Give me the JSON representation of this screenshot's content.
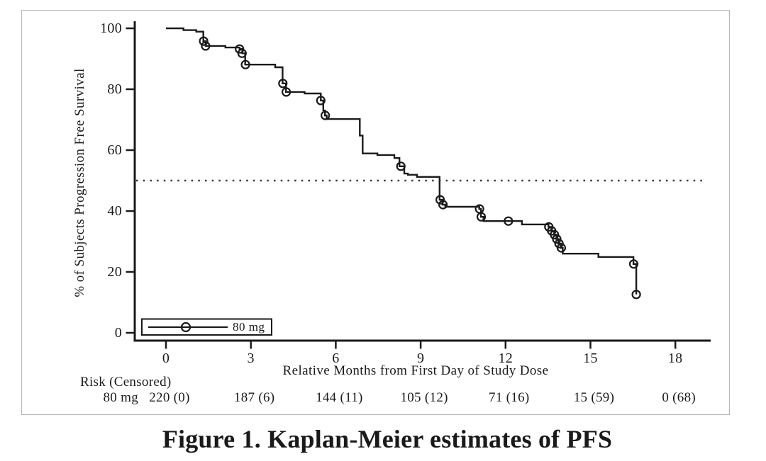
{
  "figure": {
    "caption": "Figure 1. Kaplan-Meier estimates of PFS"
  },
  "chart_data": {
    "type": "line",
    "subtype": "kaplan-meier-step",
    "title": "",
    "xlabel": "Relative Months from First Day of Study Dose",
    "ylabel": "% of Subjects Progression Free Survival",
    "xlim": [
      -1.1,
      19.2
    ],
    "ylim": [
      0,
      100
    ],
    "x_ticks": [
      0,
      3,
      6,
      9,
      12,
      15,
      18
    ],
    "y_ticks": [
      0,
      20,
      40,
      60,
      80,
      100
    ],
    "grid": false,
    "reference_line_y": 50,
    "legend": {
      "label": "80 mg",
      "position": "bottom-left"
    },
    "series": [
      {
        "name": "80 mg",
        "steps": [
          [
            0.0,
            100
          ],
          [
            0.62,
            99.4
          ],
          [
            1.07,
            98.9
          ],
          [
            1.32,
            95.8
          ],
          [
            1.4,
            94.2
          ],
          [
            2.1,
            93.7
          ],
          [
            2.6,
            93.2
          ],
          [
            2.7,
            91.8
          ],
          [
            2.8,
            88.1
          ],
          [
            3.86,
            87.2
          ],
          [
            4.12,
            81.9
          ],
          [
            4.24,
            79.1
          ],
          [
            4.9,
            78.6
          ],
          [
            5.47,
            76.3
          ],
          [
            5.56,
            73.0
          ],
          [
            5.62,
            71.4
          ],
          [
            5.68,
            70.2
          ],
          [
            6.85,
            64.8
          ],
          [
            6.95,
            58.9
          ],
          [
            7.47,
            58.4
          ],
          [
            8.07,
            57.4
          ],
          [
            8.25,
            54.7
          ],
          [
            8.42,
            52.3
          ],
          [
            8.55,
            51.9
          ],
          [
            8.87,
            51.2
          ],
          [
            9.67,
            43.7
          ],
          [
            9.77,
            42.1
          ],
          [
            9.87,
            41.4
          ],
          [
            11.07,
            40.7
          ],
          [
            11.13,
            38.1
          ],
          [
            11.22,
            36.7
          ],
          [
            12.58,
            35.6
          ],
          [
            13.52,
            34.8
          ],
          [
            13.62,
            33.5
          ],
          [
            13.72,
            32.2
          ],
          [
            13.8,
            30.8
          ],
          [
            13.87,
            29.3
          ],
          [
            13.95,
            27.9
          ],
          [
            14.02,
            26.0
          ],
          [
            15.28,
            24.9
          ],
          [
            16.52,
            22.6
          ],
          [
            16.62,
            12.6
          ]
        ],
        "censor_marks": [
          [
            1.33,
            95.8
          ],
          [
            1.4,
            94.2
          ],
          [
            2.6,
            93.2
          ],
          [
            2.69,
            91.8
          ],
          [
            2.81,
            88.1
          ],
          [
            4.13,
            81.9
          ],
          [
            4.25,
            79.1
          ],
          [
            5.47,
            76.3
          ],
          [
            5.63,
            71.4
          ],
          [
            8.3,
            54.7
          ],
          [
            9.69,
            43.7
          ],
          [
            9.79,
            42.1
          ],
          [
            11.08,
            40.7
          ],
          [
            11.14,
            38.1
          ],
          [
            12.1,
            36.7
          ],
          [
            13.53,
            34.8
          ],
          [
            13.63,
            33.5
          ],
          [
            13.73,
            32.2
          ],
          [
            13.81,
            30.8
          ],
          [
            13.89,
            29.3
          ],
          [
            13.97,
            27.9
          ],
          [
            16.53,
            22.6
          ],
          [
            16.62,
            12.6
          ]
        ]
      }
    ],
    "risk_table": {
      "header": "Risk (Censored)",
      "row_label": "80 mg",
      "times": [
        0,
        3,
        6,
        9,
        12,
        15,
        18
      ],
      "values": [
        "220 (0)",
        "187 (6)",
        "144 (11)",
        "105 (12)",
        "71 (16)",
        "15 (59)",
        "0 (68)"
      ]
    }
  },
  "colors": {
    "line": "#1a1a1a",
    "frame_border": "#b7b7b7",
    "background": "#ffffff"
  }
}
